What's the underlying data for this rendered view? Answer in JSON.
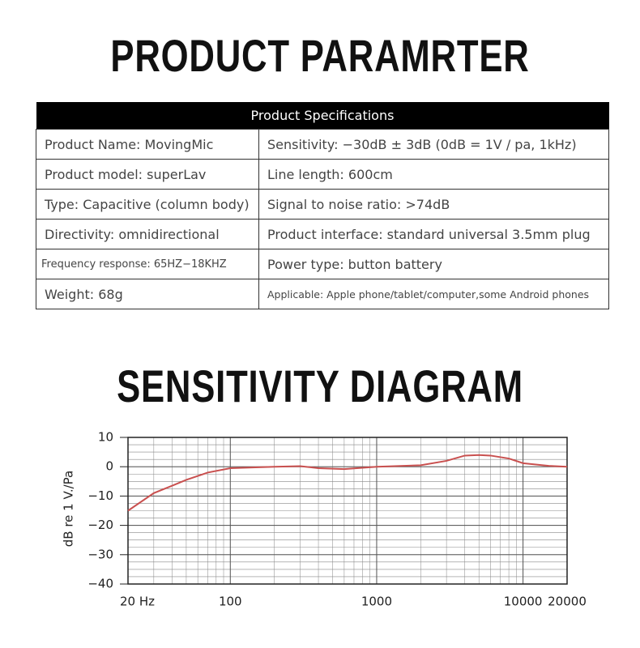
{
  "header": {
    "title": "PRODUCT PARAMRTER"
  },
  "table": {
    "caption": "Product Specifications",
    "rows": [
      [
        "Product Name: MovingMic",
        "Sensitivity: −30dB ± 3dB (0dB = 1V / pa, 1kHz)"
      ],
      [
        "Product model: superLav",
        "Line length: 600cm"
      ],
      [
        "Type: Capacitive (column body)",
        "Signal to noise ratio: >74dB"
      ],
      [
        "Directivity: omnidirectional",
        "Product interface: standard universal 3.5mm plug"
      ],
      [
        "Frequency response: 65HZ−18KHZ",
        "Power type: button battery"
      ],
      [
        "Weight: 68g",
        "Applicable: Apple phone/tablet/computer,some Android phones"
      ]
    ]
  },
  "diagram_title": "SENSITIVITY DIAGRAM",
  "chart_data": {
    "type": "line",
    "y_label": "dB re 1 V./Pa",
    "x": [
      20,
      30,
      40,
      50,
      70,
      100,
      200,
      300,
      400,
      600,
      1000,
      2000,
      3000,
      4000,
      5000,
      6000,
      8000,
      10000,
      15000,
      20000
    ],
    "series": [
      {
        "name": "sensitivity",
        "color": "#c9504f",
        "values": [
          -15,
          -9,
          -6.5,
          -4.5,
          -2,
          -0.5,
          0,
          0.2,
          -0.5,
          -0.8,
          0,
          0.5,
          2,
          3.8,
          4,
          3.8,
          2.8,
          1.2,
          0.3,
          0
        ]
      }
    ],
    "xlim": [
      20,
      20000
    ],
    "x_log": true,
    "xticks": [
      {
        "value": 20,
        "label": "20 Hz"
      },
      100,
      1000,
      10000,
      20000
    ],
    "ylim": [
      -40,
      10
    ],
    "yticks": [
      10,
      {
        "value": 0,
        "label": "0"
      },
      {
        "value": -10,
        "label": "−10"
      },
      {
        "value": -20,
        "label": "−20"
      },
      {
        "value": -30,
        "label": "−30"
      },
      {
        "value": -40,
        "label": "−40"
      }
    ],
    "grid": true
  }
}
